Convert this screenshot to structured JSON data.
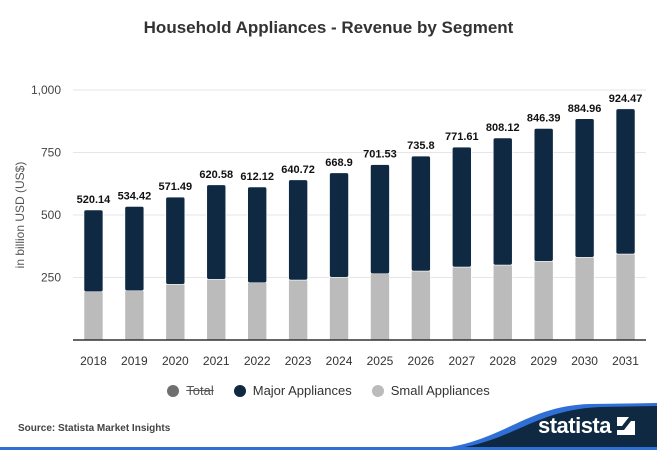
{
  "chart_data": {
    "type": "bar",
    "stacked": true,
    "title": "Household Appliances - Revenue by Segment",
    "xlabel": "",
    "ylabel": "in billion USD (US$)",
    "ylim": [
      0,
      1000
    ],
    "yticks": [
      250,
      500,
      750,
      1000
    ],
    "ytick_labels": [
      "250",
      "500",
      "750",
      "1,000"
    ],
    "grid": true,
    "categories": [
      "2018",
      "2019",
      "2020",
      "2021",
      "2022",
      "2023",
      "2024",
      "2025",
      "2026",
      "2027",
      "2028",
      "2029",
      "2030",
      "2031"
    ],
    "totals": [
      520.14,
      534.42,
      571.49,
      620.58,
      612.12,
      640.72,
      668.9,
      701.53,
      735.8,
      771.61,
      808.12,
      846.39,
      884.96,
      924.47
    ],
    "total_labels": [
      "520.14",
      "534.42",
      "571.49",
      "620.58",
      "612.12",
      "640.72",
      "668.9",
      "701.53",
      "735.8",
      "771.61",
      "808.12",
      "846.39",
      "884.96",
      "924.47"
    ],
    "series": [
      {
        "name": "Small Appliances",
        "color": "#bbbbbb",
        "values": [
          193,
          197,
          223,
          243,
          229,
          240,
          251,
          265,
          276,
          292,
          300,
          315,
          331,
          344
        ]
      },
      {
        "name": "Major Appliances",
        "color": "#0f2942",
        "values": [
          327.14,
          337.42,
          348.49,
          377.58,
          383.12,
          400.72,
          417.9,
          436.53,
          459.8,
          479.61,
          508.12,
          531.39,
          553.96,
          580.47
        ]
      }
    ],
    "legend": {
      "position": "bottom",
      "items": [
        {
          "name": "Total",
          "color": "#6f6f6f",
          "hidden": true
        },
        {
          "name": "Major Appliances",
          "color": "#0f2942",
          "hidden": false
        },
        {
          "name": "Small Appliances",
          "color": "#bbbbbb",
          "hidden": false
        }
      ]
    }
  },
  "footer": {
    "source": "Source: Statista Market Insights",
    "brand": "statista",
    "brand_bg": "#0f2942",
    "brand_accent": "#2f6fd6"
  }
}
